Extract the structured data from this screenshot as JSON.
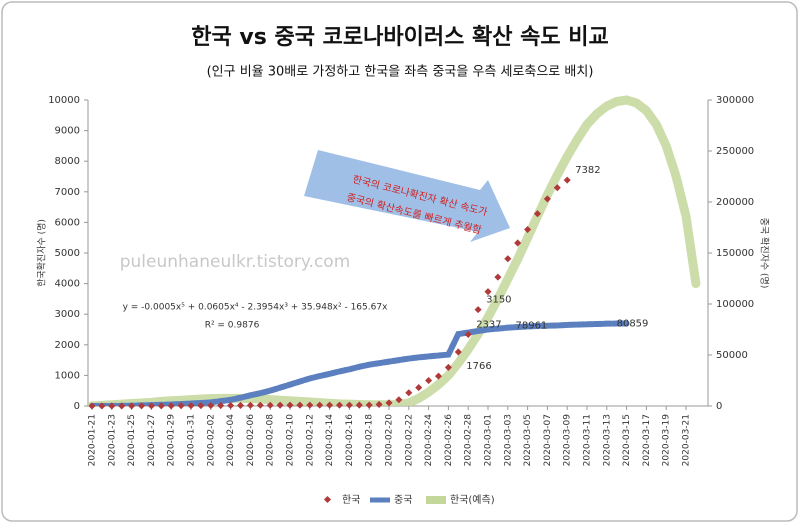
{
  "chart_data": {
    "type": "line",
    "title": "한국 vs  중국 코로나바이러스 확산 속도 비교",
    "subtitle": "(인구 비율 30배로 가정하고 한국을 좌측 중국을 우측 세로축으로 배치)",
    "y_label": "한국확진자수 (명)",
    "y2_label": "중국 확진자수 (명)",
    "categories": [
      "2020-01-21",
      null,
      "2020-01-23",
      null,
      "2020-01-25",
      null,
      "2020-01-27",
      null,
      "2020-01-29",
      null,
      "2020-01-31",
      null,
      "2020-02-02",
      null,
      "2020-02-04",
      null,
      "2020-02-06",
      null,
      "2020-02-08",
      null,
      "2020-02-10",
      null,
      "2020-02-12",
      null,
      "2020-02-14",
      null,
      "2020-02-16",
      null,
      "2020-02-18",
      null,
      "2020-02-20",
      null,
      "2020-02-22",
      null,
      "2020-02-24",
      null,
      "2020-02-26",
      null,
      "2020-02-28",
      null,
      "2020-03-01",
      null,
      "2020-03-03",
      null,
      "2020-03-05",
      null,
      "2020-03-07",
      null,
      "2020-03-09",
      null,
      "2020-03-11",
      null,
      "2020-03-13",
      null,
      "2020-03-15",
      null,
      "2020-03-17",
      null,
      "2020-03-19",
      null,
      "2020-03-21",
      null
    ],
    "series": [
      {
        "name": "한국(예측)",
        "color": "#c4d79b",
        "style": "thick",
        "values": [
          0,
          20,
          40,
          60,
          80,
          100,
          120,
          150,
          170,
          190,
          210,
          230,
          240,
          250,
          250,
          250,
          240,
          230,
          210,
          190,
          170,
          150,
          130,
          110,
          90,
          70,
          60,
          50,
          40,
          40,
          40,
          50,
          100,
          250,
          450,
          700,
          1000,
          1400,
          1850,
          2350,
          2900,
          3500,
          4150,
          4800,
          5500,
          6200,
          6900,
          7550,
          8150,
          8700,
          9200,
          9550,
          9800,
          9950,
          10000,
          9900,
          9650,
          9200,
          8500,
          7500,
          6200,
          4000
        ]
      },
      {
        "name": "중국",
        "color": "#5b7fbf",
        "style": "dash",
        "axis": "y2",
        "values": [
          0,
          0,
          0,
          150,
          300,
          600,
          900,
          1200,
          1500,
          1950,
          2400,
          3000,
          3600,
          4800,
          6000,
          8100,
          10500,
          12600,
          15000,
          18000,
          21000,
          24000,
          27000,
          29400,
          31500,
          33900,
          36000,
          38400,
          40500,
          42000,
          43500,
          45000,
          46500,
          47700,
          48600,
          49500,
          50400,
          70500,
          72000,
          73500,
          75000,
          75900,
          76800,
          77400,
          78000,
          78450,
          78700,
          78961,
          79500,
          79800,
          80100,
          80400,
          80700,
          80850,
          80859,
          null,
          null,
          null,
          null,
          null,
          null,
          null
        ],
        "value_labels": [
          null,
          null,
          null,
          null,
          null,
          null,
          null,
          null,
          null,
          null,
          null,
          null,
          null,
          null,
          null,
          null,
          null,
          null,
          null,
          null,
          null,
          null,
          null,
          null,
          null,
          null,
          null,
          null,
          null,
          null,
          null,
          null,
          null,
          null,
          null,
          null,
          null,
          null,
          null,
          null,
          null,
          null,
          null,
          null,
          null,
          null,
          null,
          "78961",
          null,
          null,
          null,
          null,
          null,
          null,
          "80859",
          null,
          null,
          null,
          null,
          null,
          null,
          null
        ]
      },
      {
        "name": "한국",
        "color": "#b03a3a",
        "style": "dots",
        "values": [
          1,
          1,
          1,
          2,
          3,
          4,
          4,
          4,
          6,
          11,
          11,
          12,
          15,
          15,
          16,
          19,
          23,
          24,
          24,
          27,
          27,
          28,
          28,
          28,
          28,
          28,
          29,
          30,
          31,
          51,
          104,
          204,
          433,
          602,
          833,
          977,
          1261,
          1766,
          2337,
          3150,
          3736,
          4212,
          4812,
          5328,
          5766,
          6284,
          6767,
          7134,
          7382,
          null,
          null,
          null,
          null,
          null,
          null,
          null,
          null,
          null,
          null,
          null,
          null,
          null
        ],
        "value_labels": [
          null,
          null,
          null,
          null,
          null,
          null,
          null,
          null,
          null,
          null,
          null,
          null,
          null,
          null,
          null,
          null,
          null,
          null,
          null,
          null,
          null,
          null,
          null,
          null,
          null,
          null,
          null,
          null,
          null,
          null,
          null,
          null,
          null,
          null,
          null,
          null,
          null,
          "1766",
          "2337",
          "3150",
          null,
          null,
          null,
          null,
          null,
          null,
          null,
          null,
          "7382",
          null,
          null,
          null,
          null,
          null,
          null,
          null,
          null,
          null,
          null,
          null,
          null,
          null
        ]
      }
    ],
    "legend_order": [
      2,
      1,
      0
    ],
    "ylim": [
      0,
      10000
    ],
    "yticks": [
      0,
      1000,
      2000,
      3000,
      4000,
      5000,
      6000,
      7000,
      8000,
      9000,
      10000
    ],
    "y2lim": [
      0,
      300000
    ],
    "y2ticks": [
      0,
      50000,
      100000,
      150000,
      200000,
      250000,
      300000
    ],
    "annotations": [
      "y = -0.0005x⁵ + 0.0605x⁴ - 2.3954x³ + 35.948x² - 165.67x",
      "R² = 0.9876"
    ],
    "callout": [
      "한국의 코로나확진자 확산 속도가",
      "중국의 확산속도를 빠르게 추월함"
    ],
    "watermark": "puleunhaneulkr.tistory.com"
  }
}
